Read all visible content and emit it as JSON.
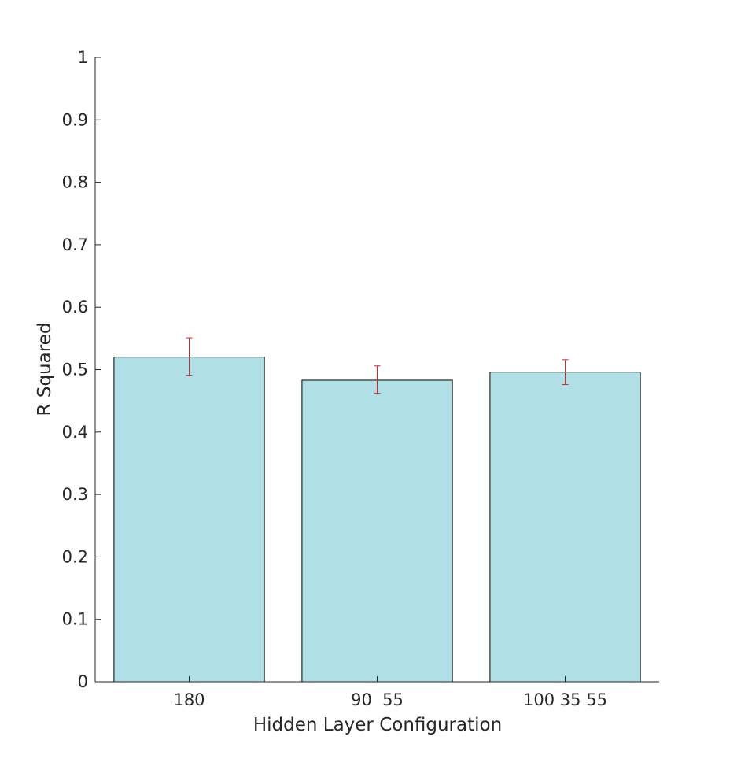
{
  "chart_data": {
    "type": "bar",
    "title": "",
    "xlabel": "Hidden Layer Configuration",
    "ylabel": "R Squared",
    "categories": [
      "180",
      "90  55",
      "100 35 55"
    ],
    "values": [
      0.52,
      0.483,
      0.496
    ],
    "error_lower": [
      0.491,
      0.462,
      0.476
    ],
    "error_upper": [
      0.551,
      0.506,
      0.516
    ],
    "ylim": [
      0,
      1
    ],
    "yticks": [
      0,
      0.1,
      0.2,
      0.3,
      0.4,
      0.5,
      0.6,
      0.7,
      0.8,
      0.9,
      1
    ],
    "ytick_labels": [
      "0",
      "0.1",
      "0.2",
      "0.3",
      "0.4",
      "0.5",
      "0.6",
      "0.7",
      "0.8",
      "0.9",
      "1"
    ],
    "grid": false,
    "colors": {
      "bar_fill": "#b0dfe5",
      "bar_edge": "#000000",
      "error_bar": "#d62728",
      "axis": "#262626"
    }
  }
}
